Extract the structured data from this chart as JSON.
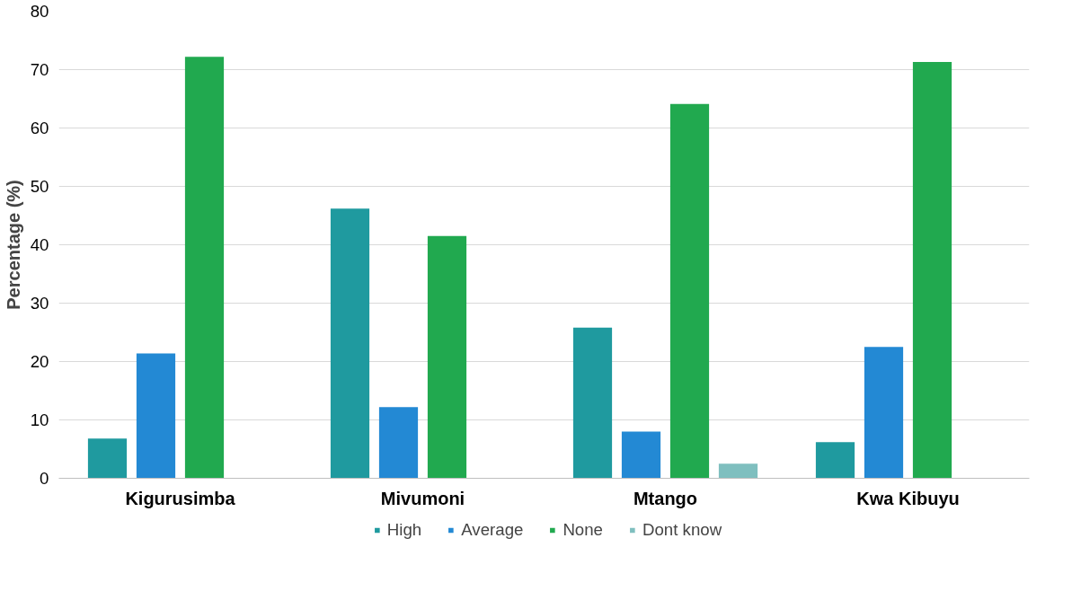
{
  "chart_data": {
    "type": "bar",
    "ylabel": "Percentage (%)",
    "categories": [
      "Kigurusimba",
      "Mivumoni",
      "Mtango",
      "Kwa Kibuyu"
    ],
    "series": [
      {
        "name": "High",
        "color": "#1f9a9f",
        "values": [
          6.8,
          46.2,
          25.8,
          6.2
        ]
      },
      {
        "name": "Average",
        "color": "#2389d4",
        "values": [
          21.4,
          12.2,
          8.0,
          22.5
        ]
      },
      {
        "name": "None",
        "color": "#21a94f",
        "values": [
          72.2,
          41.5,
          64.1,
          71.3
        ]
      },
      {
        "name": "Dont know",
        "color": "#7fbfbf",
        "values": [
          null,
          null,
          2.5,
          null
        ]
      }
    ],
    "ylim": [
      0,
      80
    ],
    "yticks": [
      0,
      10,
      20,
      30,
      40,
      50,
      60,
      70,
      80
    ],
    "grid": "y",
    "legend": "bottom"
  }
}
